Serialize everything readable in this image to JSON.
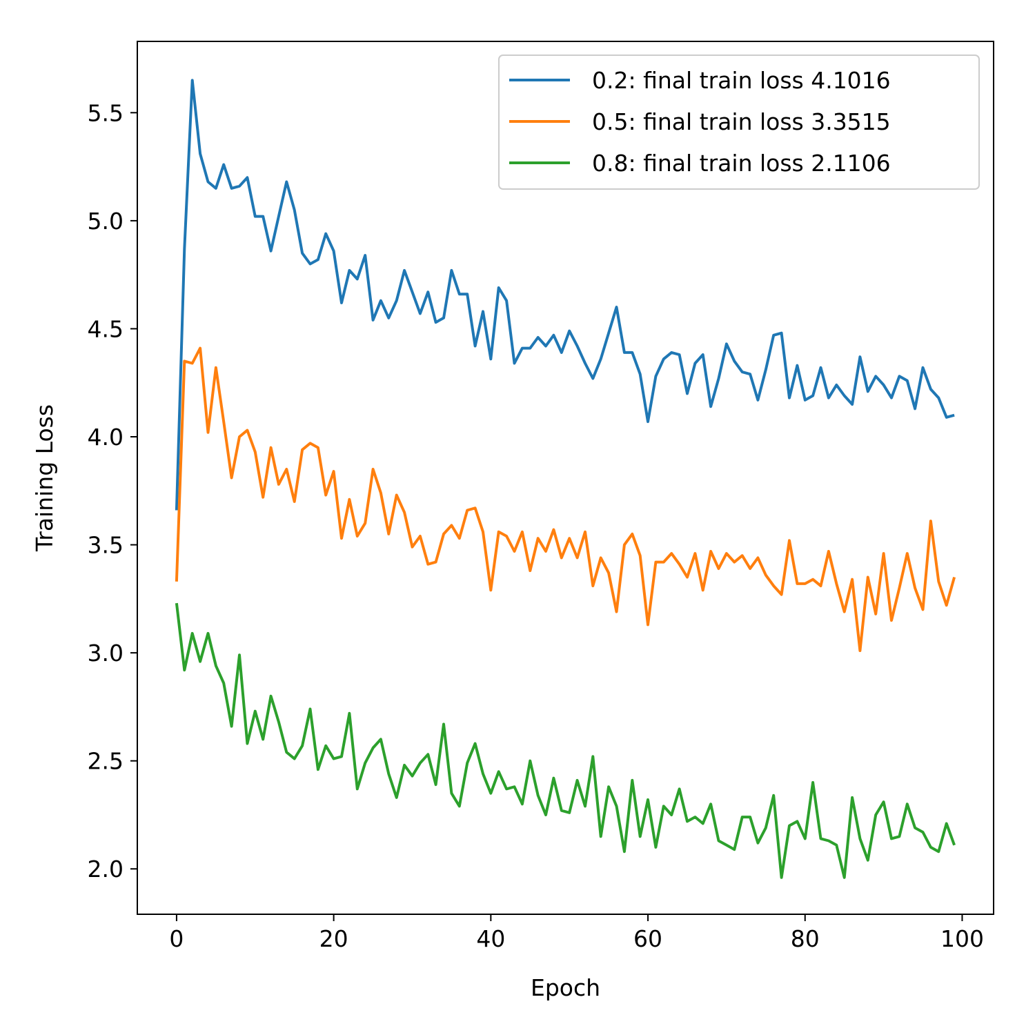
{
  "chart_data": {
    "type": "line",
    "title": "",
    "xlabel": "Epoch",
    "ylabel": "Training Loss",
    "xlim": [
      -5,
      104
    ],
    "ylim": [
      1.79,
      5.83
    ],
    "xticks": [
      0,
      20,
      40,
      60,
      80,
      100
    ],
    "xtick_labels": [
      "0",
      "20",
      "40",
      "60",
      "80",
      "100"
    ],
    "yticks": [
      2.0,
      2.5,
      3.0,
      3.5,
      4.0,
      4.5,
      5.0,
      5.5
    ],
    "ytick_labels": [
      "2.0",
      "2.5",
      "3.0",
      "3.5",
      "4.0",
      "4.5",
      "5.0",
      "5.5"
    ],
    "grid": false,
    "legend_position": "top-right",
    "series": [
      {
        "name": "0.2: final train loss 4.1016",
        "color": "#1f77b4",
        "values": [
          3.66,
          4.87,
          5.65,
          5.31,
          5.18,
          5.15,
          5.26,
          5.15,
          5.16,
          5.2,
          5.02,
          5.02,
          4.86,
          5.02,
          5.18,
          5.05,
          4.85,
          4.8,
          4.82,
          4.94,
          4.86,
          4.62,
          4.77,
          4.73,
          4.84,
          4.54,
          4.63,
          4.55,
          4.63,
          4.77,
          4.67,
          4.57,
          4.67,
          4.53,
          4.55,
          4.77,
          4.66,
          4.66,
          4.42,
          4.58,
          4.36,
          4.69,
          4.63,
          4.34,
          4.41,
          4.41,
          4.46,
          4.42,
          4.47,
          4.39,
          4.49,
          4.42,
          4.34,
          4.27,
          4.36,
          4.48,
          4.6,
          4.39,
          4.39,
          4.29,
          4.07,
          4.28,
          4.36,
          4.39,
          4.38,
          4.2,
          4.34,
          4.38,
          4.14,
          4.27,
          4.43,
          4.35,
          4.3,
          4.29,
          4.17,
          4.31,
          4.47,
          4.48,
          4.18,
          4.33,
          4.17,
          4.19,
          4.32,
          4.18,
          4.24,
          4.19,
          4.15,
          4.37,
          4.21,
          4.28,
          4.24,
          4.18,
          4.28,
          4.26,
          4.13,
          4.32,
          4.22,
          4.18,
          4.09,
          4.1
        ]
      },
      {
        "name": "0.5: final train loss 3.3515",
        "color": "#ff7f0e",
        "values": [
          3.33,
          4.35,
          4.34,
          4.41,
          4.02,
          4.32,
          4.07,
          3.81,
          4.0,
          4.03,
          3.93,
          3.72,
          3.95,
          3.78,
          3.85,
          3.7,
          3.94,
          3.97,
          3.95,
          3.73,
          3.84,
          3.53,
          3.71,
          3.54,
          3.6,
          3.85,
          3.74,
          3.55,
          3.73,
          3.65,
          3.49,
          3.54,
          3.41,
          3.42,
          3.55,
          3.59,
          3.53,
          3.66,
          3.67,
          3.56,
          3.29,
          3.56,
          3.54,
          3.47,
          3.56,
          3.38,
          3.53,
          3.47,
          3.57,
          3.44,
          3.53,
          3.44,
          3.56,
          3.31,
          3.44,
          3.37,
          3.19,
          3.5,
          3.55,
          3.45,
          3.13,
          3.42,
          3.42,
          3.46,
          3.41,
          3.35,
          3.46,
          3.29,
          3.47,
          3.39,
          3.46,
          3.42,
          3.45,
          3.39,
          3.44,
          3.36,
          3.31,
          3.27,
          3.52,
          3.32,
          3.32,
          3.34,
          3.31,
          3.47,
          3.32,
          3.19,
          3.34,
          3.01,
          3.35,
          3.18,
          3.46,
          3.15,
          3.3,
          3.46,
          3.3,
          3.2,
          3.61,
          3.33,
          3.22,
          3.35
        ]
      },
      {
        "name": "0.8: final train loss 2.1106",
        "color": "#2ca02c",
        "values": [
          3.23,
          2.92,
          3.09,
          2.96,
          3.09,
          2.94,
          2.86,
          2.66,
          2.99,
          2.58,
          2.73,
          2.6,
          2.8,
          2.68,
          2.54,
          2.51,
          2.57,
          2.74,
          2.46,
          2.57,
          2.51,
          2.52,
          2.72,
          2.37,
          2.49,
          2.56,
          2.6,
          2.44,
          2.33,
          2.48,
          2.43,
          2.49,
          2.53,
          2.39,
          2.67,
          2.35,
          2.29,
          2.49,
          2.58,
          2.44,
          2.35,
          2.45,
          2.37,
          2.38,
          2.3,
          2.5,
          2.34,
          2.25,
          2.42,
          2.27,
          2.26,
          2.41,
          2.29,
          2.52,
          2.15,
          2.38,
          2.29,
          2.08,
          2.41,
          2.15,
          2.32,
          2.1,
          2.29,
          2.25,
          2.37,
          2.22,
          2.24,
          2.21,
          2.3,
          2.13,
          2.11,
          2.09,
          2.24,
          2.24,
          2.12,
          2.19,
          2.34,
          1.96,
          2.2,
          2.22,
          2.14,
          2.4,
          2.14,
          2.13,
          2.11,
          1.96,
          2.33,
          2.14,
          2.04,
          2.25,
          2.31,
          2.14,
          2.15,
          2.3,
          2.19,
          2.17,
          2.1,
          2.08,
          2.21,
          2.11
        ]
      }
    ]
  }
}
